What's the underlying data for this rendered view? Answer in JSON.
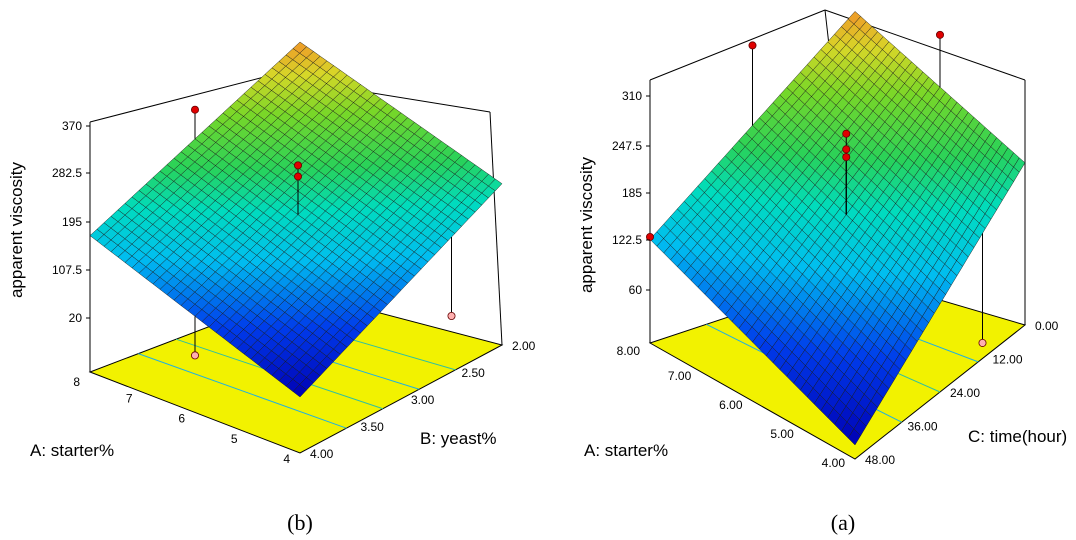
{
  "chart_data": [
    {
      "type": "surface3d",
      "caption": "(b)",
      "zlabel": "apparent viscosity",
      "xlabel": "A: starter%",
      "ylabel": "B: yeast%",
      "x_ticks": [
        "8",
        "7",
        "6",
        "5",
        "4"
      ],
      "y_ticks": [
        "2.00",
        "2.50",
        "3.00",
        "3.50",
        "4.00"
      ],
      "z_ticks": [
        "20",
        "107.5",
        "195",
        "282.5",
        "370"
      ],
      "zlim": [
        20,
        370
      ],
      "surface_corners": {
        "A8_B4": 165,
        "A8_B2": 370,
        "A4_B2": 210,
        "A4_B4": 20
      },
      "points": [
        {
          "A": 8,
          "B": 3.0,
          "value": 320,
          "above_surface": true
        },
        {
          "A": 6,
          "B": 3.0,
          "value": 280,
          "above_surface": true
        },
        {
          "A": 6,
          "B": 3.0,
          "value": 260,
          "above_surface": true
        },
        {
          "A": 6,
          "B": 4.0,
          "value": 22,
          "above_surface": false
        },
        {
          "A": 4,
          "B": 2.5,
          "value": 20,
          "above_surface": false
        }
      ]
    },
    {
      "type": "surface3d",
      "caption": "(a)",
      "zlabel": "apparent viscosity",
      "xlabel": "A: starter%",
      "ylabel": "C: time(hour)",
      "x_ticks": [
        "8.00",
        "7.00",
        "6.00",
        "5.00",
        "4.00"
      ],
      "y_ticks": [
        "0.00",
        "12.00",
        "24.00",
        "36.00",
        "48.00"
      ],
      "z_ticks": [
        "60",
        "122.5",
        "185",
        "247.5",
        "310"
      ],
      "zlim": [
        60,
        310
      ],
      "surface_corners": {
        "A8_C48": 125,
        "A8_C0": 330,
        "A4_C0": 200,
        "A4_C48": 10
      },
      "points": [
        {
          "A": 8,
          "C": 24,
          "value": 330,
          "above_surface": true
        },
        {
          "A": 6,
          "C": 24,
          "value": 270,
          "above_surface": true
        },
        {
          "A": 6,
          "C": 24,
          "value": 250,
          "above_surface": true
        },
        {
          "A": 6,
          "C": 24,
          "value": 240,
          "above_surface": true
        },
        {
          "A": 6,
          "C": 0,
          "value": 332,
          "above_surface": true
        },
        {
          "A": 8,
          "C": 48,
          "value": 128,
          "above_surface": true
        },
        {
          "A": 4,
          "C": 12,
          "value": 12,
          "above_surface": false
        }
      ]
    }
  ]
}
